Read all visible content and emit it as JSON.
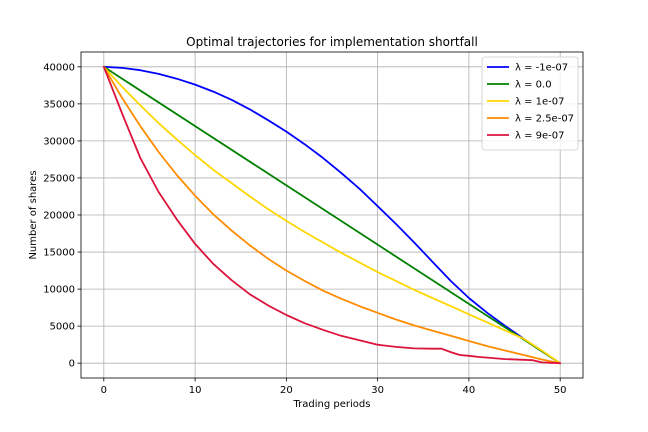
{
  "chart_data": {
    "type": "line",
    "title": "Optimal trajectories for implementation shortfall",
    "xlabel": "Trading periods",
    "ylabel": "Number of shares",
    "xlim": [
      -2.5,
      52.5
    ],
    "ylim": [
      -2000,
      42000
    ],
    "xticks": [
      0,
      10,
      20,
      30,
      40,
      50
    ],
    "yticks": [
      0,
      5000,
      10000,
      15000,
      20000,
      25000,
      30000,
      35000,
      40000
    ],
    "grid": true,
    "legend_position": "top-right",
    "series": [
      {
        "name": "λ = -1e-07",
        "color": "#0000ff",
        "x": [
          0,
          2,
          4,
          6,
          8,
          10,
          12,
          14,
          16,
          18,
          20,
          22,
          24,
          26,
          28,
          30,
          32,
          34,
          36,
          38,
          40,
          42,
          44,
          46,
          48,
          50
        ],
        "y": [
          40000,
          39850,
          39550,
          39050,
          38400,
          37600,
          36650,
          35550,
          34250,
          32800,
          31250,
          29550,
          27700,
          25700,
          23550,
          21200,
          18800,
          16300,
          13700,
          11100,
          8800,
          6800,
          5000,
          3300,
          1600,
          0
        ]
      },
      {
        "name": "λ = 0.0",
        "color": "#008000",
        "x": [
          0,
          50
        ],
        "y": [
          40000,
          0
        ]
      },
      {
        "name": "λ = 1e-07",
        "color": "#ffd700",
        "x": [
          0,
          2,
          4,
          6,
          8,
          10,
          12,
          14,
          16,
          18,
          20,
          22,
          24,
          26,
          28,
          30,
          32,
          34,
          36,
          38,
          40,
          42,
          44,
          46,
          48,
          50
        ],
        "y": [
          40000,
          37300,
          34800,
          32400,
          30200,
          28100,
          26100,
          24300,
          22500,
          20800,
          19200,
          17700,
          16300,
          14900,
          13600,
          12300,
          11100,
          9900,
          8800,
          7700,
          6600,
          5500,
          4400,
          3300,
          1700,
          0
        ]
      },
      {
        "name": "λ = 2.5e-07",
        "color": "#ff8c00",
        "x": [
          0,
          2,
          4,
          6,
          8,
          10,
          12,
          14,
          16,
          18,
          20,
          22,
          24,
          26,
          28,
          30,
          32,
          34,
          36,
          38,
          40,
          42,
          44,
          46,
          48,
          50
        ],
        "y": [
          40000,
          35800,
          32000,
          28500,
          25400,
          22600,
          20100,
          17900,
          15900,
          14100,
          12500,
          11100,
          9800,
          8700,
          7700,
          6800,
          5900,
          5100,
          4400,
          3700,
          3000,
          2300,
          1700,
          1100,
          500,
          0
        ]
      },
      {
        "name": "λ = 9e-07",
        "color": "#dc143c",
        "x": [
          0,
          2,
          4,
          6,
          8,
          10,
          12,
          14,
          16,
          18,
          20,
          22,
          24,
          26,
          28,
          30,
          32,
          34,
          36,
          37,
          38,
          39,
          40,
          41,
          42,
          44,
          46,
          47,
          48,
          49,
          50
        ],
        "y": [
          40000,
          33700,
          27700,
          23100,
          19400,
          16100,
          13400,
          11200,
          9300,
          7800,
          6500,
          5400,
          4500,
          3700,
          3100,
          2500,
          2200,
          2000,
          1950,
          1950,
          1500,
          1100,
          1000,
          850,
          750,
          550,
          450,
          400,
          100,
          50,
          0
        ]
      }
    ]
  }
}
